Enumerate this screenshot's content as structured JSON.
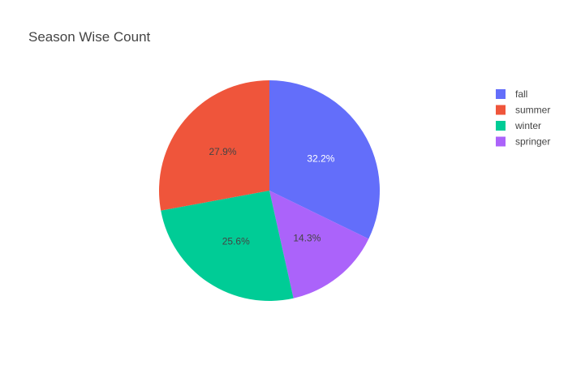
{
  "chart_data": {
    "type": "pie",
    "title": "Season Wise Count",
    "slices": [
      {
        "label": "fall",
        "percent": 32.2,
        "percent_label": "32.2%",
        "color": "#636efa",
        "text_color": "#ffffff"
      },
      {
        "label": "springer",
        "percent": 14.3,
        "percent_label": "14.3%",
        "color": "#ab63fa",
        "text_color": "#444444"
      },
      {
        "label": "winter",
        "percent": 25.6,
        "percent_label": "25.6%",
        "color": "#00cc96",
        "text_color": "#444444"
      },
      {
        "label": "summer",
        "percent": 27.9,
        "percent_label": "27.9%",
        "color": "#ef553b",
        "text_color": "#444444"
      }
    ],
    "legend": {
      "placement": "right",
      "order": [
        "fall",
        "summer",
        "winter",
        "springer"
      ]
    },
    "start_angle_deg": 0,
    "direction": "clockwise"
  }
}
